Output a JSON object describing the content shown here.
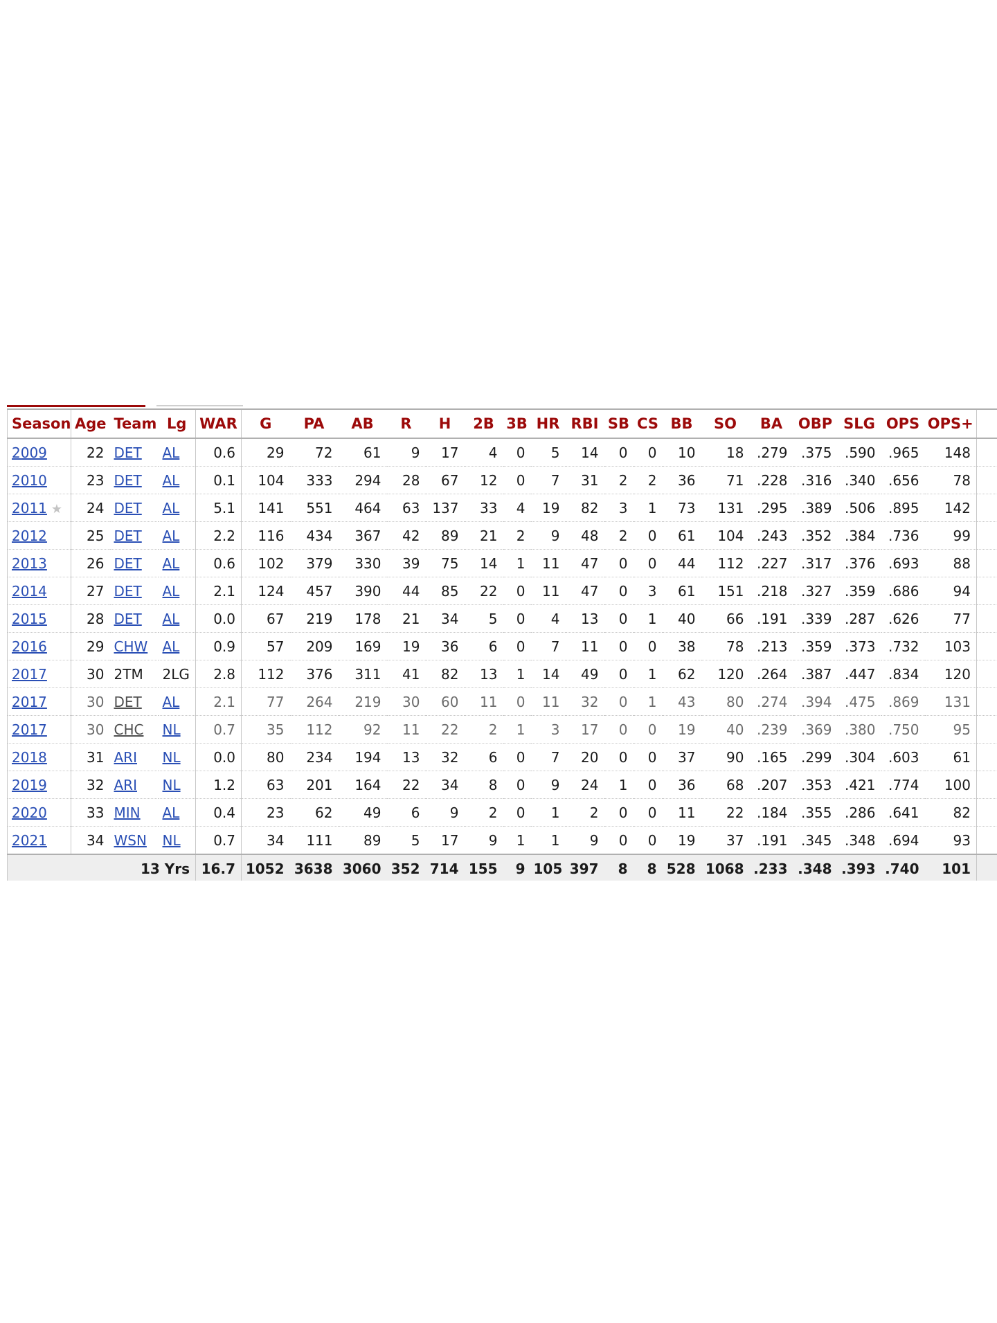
{
  "table": {
    "headers": [
      "Season",
      "Age",
      "Team",
      "Lg",
      "WAR",
      "G",
      "PA",
      "AB",
      "R",
      "H",
      "2B",
      "3B",
      "HR",
      "RBI",
      "SB",
      "CS",
      "BB",
      "SO",
      "BA",
      "OBP",
      "SLG",
      "OPS",
      "OPS+"
    ],
    "rows": [
      {
        "season": "2009",
        "star": "",
        "age": "22",
        "team": "DET",
        "lg": "AL",
        "war": "0.6",
        "g": "29",
        "pa": "72",
        "ab": "61",
        "r": "9",
        "h": "17",
        "b2": "4",
        "b3": "0",
        "hr": "5",
        "rbi": "14",
        "sb": "0",
        "cs": "0",
        "bb": "10",
        "so": "18",
        "ba": ".279",
        "obp": ".375",
        "slg": ".590",
        "ops": ".965",
        "opsp": "148"
      },
      {
        "season": "2010",
        "star": "",
        "age": "23",
        "team": "DET",
        "lg": "AL",
        "war": "0.1",
        "g": "104",
        "pa": "333",
        "ab": "294",
        "r": "28",
        "h": "67",
        "b2": "12",
        "b3": "0",
        "hr": "7",
        "rbi": "31",
        "sb": "2",
        "cs": "2",
        "bb": "36",
        "so": "71",
        "ba": ".228",
        "obp": ".316",
        "slg": ".340",
        "ops": ".656",
        "opsp": "78"
      },
      {
        "season": "2011",
        "star": "★",
        "age": "24",
        "team": "DET",
        "lg": "AL",
        "war": "5.1",
        "g": "141",
        "pa": "551",
        "ab": "464",
        "r": "63",
        "h": "137",
        "b2": "33",
        "b3": "4",
        "hr": "19",
        "rbi": "82",
        "sb": "3",
        "cs": "1",
        "bb": "73",
        "so": "131",
        "ba": ".295",
        "obp": ".389",
        "slg": ".506",
        "ops": ".895",
        "opsp": "142"
      },
      {
        "season": "2012",
        "star": "",
        "age": "25",
        "team": "DET",
        "lg": "AL",
        "war": "2.2",
        "g": "116",
        "pa": "434",
        "ab": "367",
        "r": "42",
        "h": "89",
        "b2": "21",
        "b3": "2",
        "hr": "9",
        "rbi": "48",
        "sb": "2",
        "cs": "0",
        "bb": "61",
        "so": "104",
        "ba": ".243",
        "obp": ".352",
        "slg": ".384",
        "ops": ".736",
        "opsp": "99"
      },
      {
        "season": "2013",
        "star": "",
        "age": "26",
        "team": "DET",
        "lg": "AL",
        "war": "0.6",
        "g": "102",
        "pa": "379",
        "ab": "330",
        "r": "39",
        "h": "75",
        "b2": "14",
        "b3": "1",
        "hr": "11",
        "rbi": "47",
        "sb": "0",
        "cs": "0",
        "bb": "44",
        "so": "112",
        "ba": ".227",
        "obp": ".317",
        "slg": ".376",
        "ops": ".693",
        "opsp": "88"
      },
      {
        "season": "2014",
        "star": "",
        "age": "27",
        "team": "DET",
        "lg": "AL",
        "war": "2.1",
        "g": "124",
        "pa": "457",
        "ab": "390",
        "r": "44",
        "h": "85",
        "b2": "22",
        "b3": "0",
        "hr": "11",
        "rbi": "47",
        "sb": "0",
        "cs": "3",
        "bb": "61",
        "so": "151",
        "ba": ".218",
        "obp": ".327",
        "slg": ".359",
        "ops": ".686",
        "opsp": "94"
      },
      {
        "season": "2015",
        "star": "",
        "age": "28",
        "team": "DET",
        "lg": "AL",
        "war": "0.0",
        "g": "67",
        "pa": "219",
        "ab": "178",
        "r": "21",
        "h": "34",
        "b2": "5",
        "b3": "0",
        "hr": "4",
        "rbi": "13",
        "sb": "0",
        "cs": "1",
        "bb": "40",
        "so": "66",
        "ba": ".191",
        "obp": ".339",
        "slg": ".287",
        "ops": ".626",
        "opsp": "77"
      },
      {
        "season": "2016",
        "star": "",
        "age": "29",
        "team": "CHW",
        "lg": "AL",
        "war": "0.9",
        "g": "57",
        "pa": "209",
        "ab": "169",
        "r": "19",
        "h": "36",
        "b2": "6",
        "b3": "0",
        "hr": "7",
        "rbi": "11",
        "sb": "0",
        "cs": "0",
        "bb": "38",
        "so": "78",
        "ba": ".213",
        "obp": ".359",
        "slg": ".373",
        "ops": ".732",
        "opsp": "103"
      },
      {
        "season": "2017",
        "star": "",
        "age": "30",
        "team": "2TM",
        "lg": "2LG",
        "war": "2.8",
        "g": "112",
        "pa": "376",
        "ab": "311",
        "r": "41",
        "h": "82",
        "b2": "13",
        "b3": "1",
        "hr": "14",
        "rbi": "49",
        "sb": "0",
        "cs": "1",
        "bb": "62",
        "so": "120",
        "ba": ".264",
        "obp": ".387",
        "slg": ".447",
        "ops": ".834",
        "opsp": "120"
      },
      {
        "season": "2017",
        "star": "",
        "age": "30",
        "team": "DET",
        "lg": "AL",
        "war": "2.1",
        "g": "77",
        "pa": "264",
        "ab": "219",
        "r": "30",
        "h": "60",
        "b2": "11",
        "b3": "0",
        "hr": "11",
        "rbi": "32",
        "sb": "0",
        "cs": "1",
        "bb": "43",
        "so": "80",
        "ba": ".274",
        "obp": ".394",
        "slg": ".475",
        "ops": ".869",
        "opsp": "131"
      },
      {
        "season": "2017",
        "star": "",
        "age": "30",
        "team": "CHC",
        "lg": "NL",
        "war": "0.7",
        "g": "35",
        "pa": "112",
        "ab": "92",
        "r": "11",
        "h": "22",
        "b2": "2",
        "b3": "1",
        "hr": "3",
        "rbi": "17",
        "sb": "0",
        "cs": "0",
        "bb": "19",
        "so": "40",
        "ba": ".239",
        "obp": ".369",
        "slg": ".380",
        "ops": ".750",
        "opsp": "95"
      },
      {
        "season": "2018",
        "star": "",
        "age": "31",
        "team": "ARI",
        "lg": "NL",
        "war": "0.0",
        "g": "80",
        "pa": "234",
        "ab": "194",
        "r": "13",
        "h": "32",
        "b2": "6",
        "b3": "0",
        "hr": "7",
        "rbi": "20",
        "sb": "0",
        "cs": "0",
        "bb": "37",
        "so": "90",
        "ba": ".165",
        "obp": ".299",
        "slg": ".304",
        "ops": ".603",
        "opsp": "61"
      },
      {
        "season": "2019",
        "star": "",
        "age": "32",
        "team": "ARI",
        "lg": "NL",
        "war": "1.2",
        "g": "63",
        "pa": "201",
        "ab": "164",
        "r": "22",
        "h": "34",
        "b2": "8",
        "b3": "0",
        "hr": "9",
        "rbi": "24",
        "sb": "1",
        "cs": "0",
        "bb": "36",
        "so": "68",
        "ba": ".207",
        "obp": ".353",
        "slg": ".421",
        "ops": ".774",
        "opsp": "100"
      },
      {
        "season": "2020",
        "star": "",
        "age": "33",
        "team": "MIN",
        "lg": "AL",
        "war": "0.4",
        "g": "23",
        "pa": "62",
        "ab": "49",
        "r": "6",
        "h": "9",
        "b2": "2",
        "b3": "0",
        "hr": "1",
        "rbi": "2",
        "sb": "0",
        "cs": "0",
        "bb": "11",
        "so": "22",
        "ba": ".184",
        "obp": ".355",
        "slg": ".286",
        "ops": ".641",
        "opsp": "82"
      },
      {
        "season": "2021",
        "star": "",
        "age": "34",
        "team": "WSN",
        "lg": "NL",
        "war": "0.7",
        "g": "34",
        "pa": "111",
        "ab": "89",
        "r": "5",
        "h": "17",
        "b2": "9",
        "b3": "1",
        "hr": "1",
        "rbi": "9",
        "sb": "0",
        "cs": "0",
        "bb": "19",
        "so": "37",
        "ba": ".191",
        "obp": ".345",
        "slg": ".348",
        "ops": ".694",
        "opsp": "93"
      }
    ],
    "totals": {
      "label": "13 Yrs",
      "war": "16.7",
      "g": "1052",
      "pa": "3638",
      "ab": "3060",
      "r": "352",
      "h": "714",
      "b2": "155",
      "b3": "9",
      "hr": "105",
      "rbi": "397",
      "sb": "8",
      "cs": "8",
      "bb": "528",
      "so": "1068",
      "ba": ".233",
      "obp": ".348",
      "slg": ".393",
      "ops": ".740",
      "opsp": "101"
    }
  },
  "colors": {
    "header_text": "#9c0a0a",
    "link": "#2a4fb5",
    "sub_row_text": "#6d6d6d",
    "totals_bg": "#eeeeee"
  }
}
